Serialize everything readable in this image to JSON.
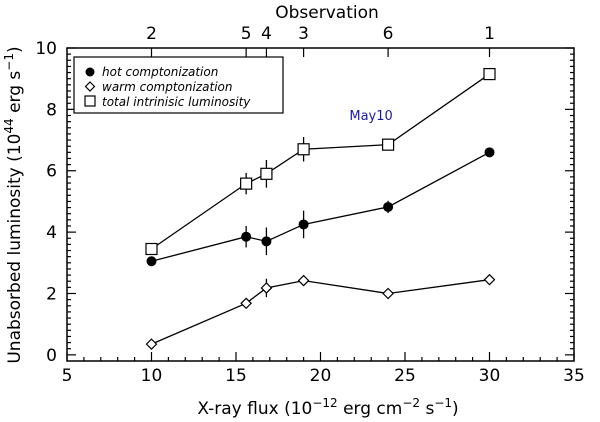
{
  "chart_data": {
    "type": "scatter",
    "title": "",
    "xlabel_main": "X-ray flux (10",
    "xlabel_exp1": "−12",
    "xlabel_mid": " erg cm",
    "xlabel_exp2": "−2",
    "xlabel_mid2": " s",
    "xlabel_exp3": "−1",
    "xlabel_end": ")",
    "ylabel_main": "Unabsorbed luminosity (10",
    "ylabel_exp1": "44",
    "ylabel_mid": " erg s",
    "ylabel_exp2": "−1",
    "ylabel_end": ")",
    "top_axis_label": "Observation",
    "xlim": [
      5,
      35
    ],
    "ylim": [
      -0.2,
      10
    ],
    "x_ticks": [
      5,
      10,
      15,
      20,
      25,
      30,
      35
    ],
    "y_ticks": [
      0,
      2,
      4,
      6,
      8,
      10
    ],
    "top_ticks": [
      {
        "x": 10,
        "label": "2"
      },
      {
        "x": 15.6,
        "label": "5"
      },
      {
        "x": 16.8,
        "label": "4"
      },
      {
        "x": 19,
        "label": "3"
      },
      {
        "x": 24,
        "label": "6"
      },
      {
        "x": 30,
        "label": "1"
      }
    ],
    "series": [
      {
        "name": "hot comptonization",
        "marker": "filled-circle",
        "x": [
          10,
          15.6,
          16.8,
          19,
          24,
          30
        ],
        "y": [
          3.05,
          3.85,
          3.7,
          4.25,
          4.82,
          6.6
        ],
        "yerr": [
          0.1,
          0.35,
          0.45,
          0.45,
          0.2,
          0.1
        ]
      },
      {
        "name": "warm comptonization",
        "marker": "diamond",
        "x": [
          10,
          15.6,
          16.8,
          19,
          24,
          30
        ],
        "y": [
          0.35,
          1.68,
          2.18,
          2.42,
          2.0,
          2.45
        ],
        "yerr": [
          0.05,
          0.1,
          0.3,
          0.1,
          0.1,
          0.1
        ]
      },
      {
        "name": "total intrinisic luminosity",
        "marker": "open-square",
        "x": [
          10,
          15.6,
          16.8,
          19,
          24,
          30
        ],
        "y": [
          3.45,
          5.58,
          5.9,
          6.7,
          6.85,
          9.15
        ],
        "yerr": [
          0.1,
          0.35,
          0.45,
          0.4,
          0.15,
          0.1
        ]
      }
    ],
    "annotations": [
      {
        "text": "May10",
        "x": 24,
        "y": 7.65
      }
    ],
    "legend_position": "top-left",
    "colors": {
      "axis": "#000000",
      "annotation": "#1a1aa8"
    }
  }
}
